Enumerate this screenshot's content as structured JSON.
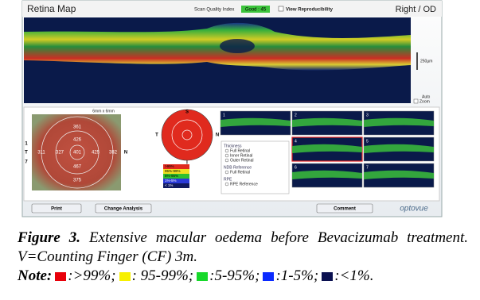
{
  "screenshot": {
    "header": {
      "title": "Retina Map",
      "quality_label": "Scan Quality Index",
      "quality_value": "Good : 45",
      "checkbox": "View Reproducibility",
      "eye": "Right / OD"
    },
    "scale": {
      "bar": "250µm",
      "zoom": [
        "Auto",
        "Zoom"
      ]
    },
    "thickness_map": {
      "size": "6mm x 6mm",
      "orientation": [
        "T",
        "N",
        "1",
        "7"
      ],
      "values": [
        "361",
        "426",
        "311",
        "327",
        "401",
        "425",
        "382",
        "467",
        "375"
      ]
    },
    "significance_map": {
      "orientation": [
        "S",
        "T",
        "N",
        "I"
      ],
      "legend": [
        ">99%",
        "95%-99%",
        "5%-95%",
        "1%-5%",
        "< 1%"
      ]
    },
    "options": {
      "groups": [
        {
          "title": "Thickness",
          "items": [
            "Full Retinal",
            "Inner Retinal",
            "Outer Retinal"
          ]
        },
        {
          "title": "NDB Reference",
          "items": [
            "Full Retinal"
          ]
        },
        {
          "title": "RPE",
          "items": [
            "RPE Reference"
          ]
        }
      ]
    },
    "thumbnails": [
      "1",
      "2",
      "3",
      "4",
      "5",
      "6",
      "7"
    ],
    "buttons": [
      "Print",
      "Change Analysis",
      "Comment"
    ],
    "logo": "optovue"
  },
  "caption": {
    "label": "Figure 3.",
    "text": "Extensive macular oedema before Bevacizumab treatment. V=Counting Finger (CF) 3m.",
    "note_label": "Note:",
    "note_items": [
      ":>99%;",
      ": 95-99%;",
      ":5-95%;",
      ":1-5%;",
      ":<1%."
    ]
  }
}
